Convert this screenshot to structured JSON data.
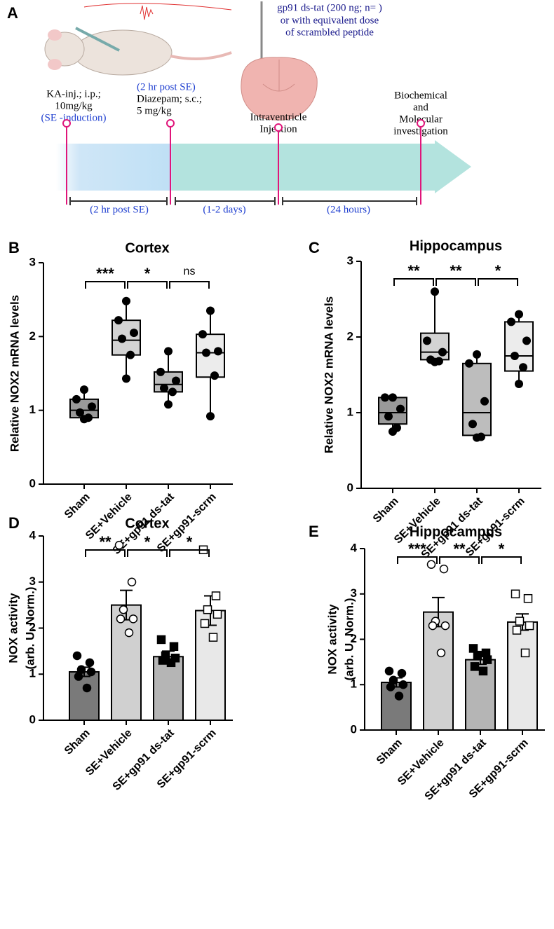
{
  "timeline": {
    "panel": "A",
    "injection": [
      "gp91 ds-tat (200 ng; n= )",
      "or with equivalent dose",
      "of scrambled peptide"
    ],
    "step1": [
      "KA-inj.; i.p.;",
      "10mg/kg",
      "(SE -induction)"
    ],
    "step2": [
      "(2 hr post SE)",
      "Diazepam; s.c.;",
      "5 mg/kg"
    ],
    "step3": [
      "Intraventricle",
      "Injection"
    ],
    "step4": [
      "Biochemical",
      "and",
      "Molecular",
      "investigation"
    ],
    "intervals": [
      "(2 hr post SE)",
      "(1-2 days)",
      "(24 hours)"
    ]
  },
  "chart_data": [
    {
      "type": "box",
      "panel": "B",
      "title": "Cortex",
      "ylabel": [
        "Relative NOX2 mRNA levels"
      ],
      "categories": [
        "Sham",
        "SE+Vehicle",
        "SE+gp91 ds-tat",
        "SE+gp91-scrm"
      ],
      "ylim": [
        0,
        3
      ],
      "yticks": [
        0,
        1,
        2,
        3
      ],
      "colors": [
        "#9a9a9a",
        "#d3d3d3",
        "#bdbdbd",
        "#ececec"
      ],
      "boxes": [
        {
          "min": 0.88,
          "q1": 0.9,
          "median": 1.0,
          "q3": 1.15,
          "max": 1.28,
          "points": [
            1.28,
            1.15,
            1.05,
            0.97,
            0.9,
            0.88
          ]
        },
        {
          "min": 1.43,
          "q1": 1.75,
          "median": 1.95,
          "q3": 2.22,
          "max": 2.48,
          "points": [
            2.48,
            2.22,
            2.05,
            1.97,
            1.75,
            1.43
          ]
        },
        {
          "min": 1.08,
          "q1": 1.25,
          "median": 1.35,
          "q3": 1.52,
          "max": 1.8,
          "points": [
            1.8,
            1.52,
            1.4,
            1.3,
            1.25,
            1.08
          ]
        },
        {
          "min": 0.92,
          "q1": 1.45,
          "median": 1.78,
          "q3": 2.03,
          "max": 2.35,
          "points": [
            2.35,
            2.03,
            1.8,
            1.78,
            1.47,
            0.92
          ]
        }
      ],
      "significance": [
        "***",
        "*",
        "ns"
      ]
    },
    {
      "type": "box",
      "panel": "C",
      "title": "Hippocampus",
      "ylabel": [
        "Relative NOX2 mRNA levels"
      ],
      "categories": [
        "Sham",
        "SE+Vehicle",
        "SE+gp91 ds-tat",
        "SE+gp91-scrm"
      ],
      "ylim": [
        0,
        3
      ],
      "yticks": [
        0,
        1,
        2,
        3
      ],
      "colors": [
        "#9a9a9a",
        "#d3d3d3",
        "#bdbdbd",
        "#ececec"
      ],
      "boxes": [
        {
          "min": 0.75,
          "q1": 0.85,
          "median": 1.0,
          "q3": 1.2,
          "max": 1.2,
          "points": [
            1.2,
            1.2,
            1.05,
            0.95,
            0.8,
            0.75
          ]
        },
        {
          "min": 1.65,
          "q1": 1.7,
          "median": 1.8,
          "q3": 2.05,
          "max": 2.6,
          "points": [
            2.6,
            1.95,
            1.8,
            1.7,
            1.68,
            1.67
          ]
        },
        {
          "min": 0.67,
          "q1": 0.7,
          "median": 1.0,
          "q3": 1.65,
          "max": 1.77,
          "points": [
            1.77,
            1.65,
            1.15,
            0.85,
            0.68,
            0.67
          ]
        },
        {
          "min": 1.38,
          "q1": 1.55,
          "median": 1.75,
          "q3": 2.2,
          "max": 2.3,
          "points": [
            2.3,
            2.2,
            1.95,
            1.75,
            1.6,
            1.38
          ]
        }
      ],
      "significance": [
        "**",
        "**",
        "*"
      ]
    },
    {
      "type": "bar",
      "panel": "D",
      "title": "Cortex",
      "ylabel": [
        "NOX activity",
        "(arb. U, Norm.)"
      ],
      "categories": [
        "Sham",
        "SE+Vehicle",
        "SE+gp91 ds-tat",
        "SE+gp91-scrm"
      ],
      "ylim": [
        0,
        4
      ],
      "yticks": [
        0,
        1,
        2,
        3,
        4
      ],
      "colors": [
        "#7a7a7a",
        "#d0d0d0",
        "#b5b5b5",
        "#e8e8e8"
      ],
      "markers": [
        "circle-filled",
        "circle-open",
        "square-filled",
        "square-open"
      ],
      "values": [
        1.05,
        2.5,
        1.38,
        2.38
      ],
      "errors": [
        0.1,
        0.32,
        0.12,
        0.32
      ],
      "points": [
        [
          1.4,
          1.25,
          1.1,
          1.05,
          0.95,
          0.7
        ],
        [
          3.8,
          3.0,
          2.4,
          2.2,
          2.2,
          1.9
        ],
        [
          1.75,
          1.6,
          1.4,
          1.35,
          1.3,
          1.25
        ],
        [
          3.7,
          2.7,
          2.4,
          2.3,
          2.1,
          1.8
        ]
      ],
      "significance": [
        "**",
        "*",
        "*"
      ]
    },
    {
      "type": "bar",
      "panel": "E",
      "title": "Hippocampus",
      "ylabel": [
        "NOX activity",
        "(arb. U, Norm.)"
      ],
      "categories": [
        "Sham",
        "SE+Vehicle",
        "SE+gp91 ds-tat",
        "SE+gp91-scrm"
      ],
      "ylim": [
        0,
        4
      ],
      "yticks": [
        0,
        1,
        2,
        3,
        4
      ],
      "colors": [
        "#7a7a7a",
        "#d0d0d0",
        "#b5b5b5",
        "#e8e8e8"
      ],
      "markers": [
        "circle-filled",
        "circle-open",
        "square-filled",
        "square-open"
      ],
      "values": [
        1.05,
        2.6,
        1.55,
        2.38
      ],
      "errors": [
        0.1,
        0.32,
        0.1,
        0.18
      ],
      "points": [
        [
          1.3,
          1.25,
          1.1,
          1.0,
          0.95,
          0.75
        ],
        [
          3.65,
          3.55,
          2.4,
          2.3,
          2.3,
          1.7
        ],
        [
          1.8,
          1.7,
          1.65,
          1.55,
          1.4,
          1.3
        ],
        [
          3.0,
          2.9,
          2.4,
          2.3,
          2.2,
          1.7
        ]
      ],
      "significance": [
        "***",
        "**",
        "*"
      ]
    }
  ]
}
